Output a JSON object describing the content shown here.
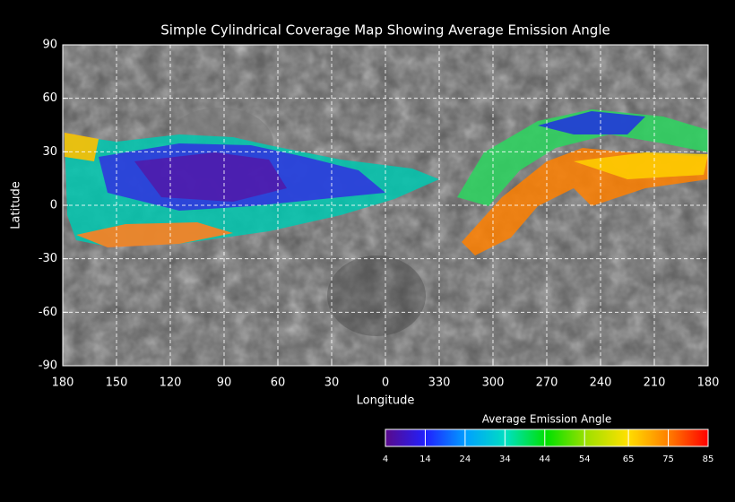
{
  "chart_data": {
    "type": "map",
    "title": "Simple Cylindrical Coverage Map Showing Average Emission Angle",
    "xlabel": "Longitude",
    "ylabel": "Latitude",
    "xlim": [
      180,
      -180
    ],
    "xticks": [
      180,
      150,
      120,
      90,
      60,
      30,
      0,
      {
        "value": -30,
        "label": "330"
      },
      {
        "value": -60,
        "label": "300"
      },
      {
        "value": -90,
        "label": "270"
      },
      {
        "value": -120,
        "label": "240"
      },
      {
        "value": -150,
        "label": "210"
      },
      {
        "value": -180,
        "label": "180"
      }
    ],
    "ylim": [
      -90,
      90
    ],
    "yticks": [
      90,
      60,
      30,
      0,
      -30,
      -60,
      -90
    ],
    "grid": true,
    "colorbar": {
      "title": "Average Emission Angle",
      "lim": [
        4,
        85
      ],
      "ticks": [
        4,
        14,
        24,
        34,
        44,
        54,
        65,
        75,
        85
      ],
      "colors": [
        "#5a0a8a",
        "#2020ff",
        "#00a0ff",
        "#00e0c0",
        "#00e000",
        "#a0e000",
        "#ffe000",
        "#ff8000",
        "#ff0000"
      ]
    }
  }
}
